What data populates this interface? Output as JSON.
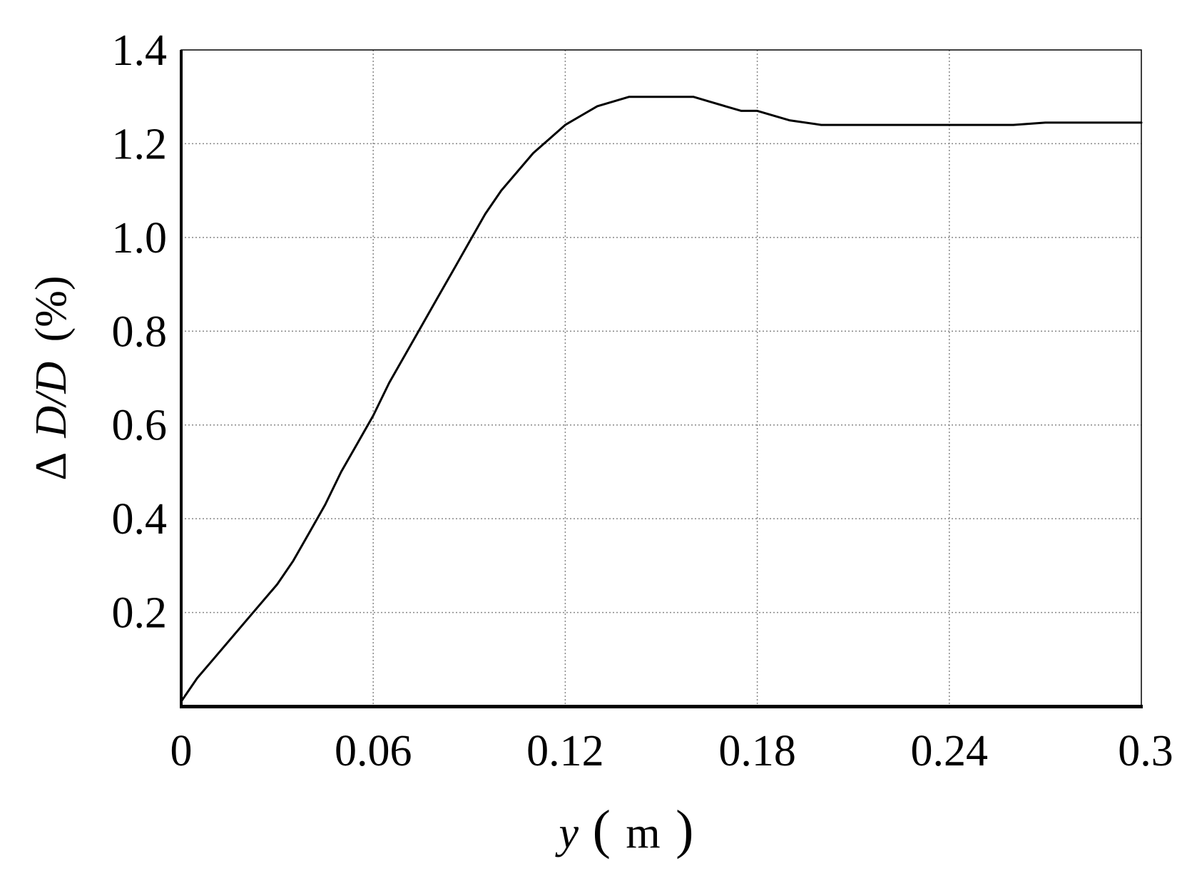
{
  "chart_data": {
    "type": "line",
    "title": "",
    "xlabel": {
      "var": "y",
      "unit": "m"
    },
    "ylabel": {
      "prefix": "Δ",
      "var": "D/D",
      "unit": "(%)"
    },
    "xlim": [
      0,
      0.3
    ],
    "ylim": [
      0,
      1.4
    ],
    "x_ticks": [
      "0",
      "0.06",
      "0.12",
      "0.18",
      "0.24",
      "0.3"
    ],
    "x_tick_values": [
      0,
      0.06,
      0.12,
      0.18,
      0.24,
      0.3
    ],
    "y_ticks": [
      "0.2",
      "0.4",
      "0.6",
      "0.8",
      "1.0",
      "1.2",
      "1.4"
    ],
    "y_tick_values": [
      0.2,
      0.4,
      0.6,
      0.8,
      1.0,
      1.2,
      1.4
    ],
    "grid": true,
    "line_color": "#000000",
    "series": [
      {
        "x": [
          0,
          0.005,
          0.01,
          0.02,
          0.03,
          0.035,
          0.04,
          0.045,
          0.05,
          0.055,
          0.06,
          0.065,
          0.07,
          0.075,
          0.08,
          0.085,
          0.09,
          0.095,
          0.1,
          0.105,
          0.11,
          0.115,
          0.12,
          0.125,
          0.13,
          0.135,
          0.14,
          0.145,
          0.15,
          0.155,
          0.16,
          0.165,
          0.17,
          0.175,
          0.18,
          0.19,
          0.2,
          0.21,
          0.22,
          0.23,
          0.24,
          0.25,
          0.26,
          0.27,
          0.28,
          0.29,
          0.3
        ],
        "y": [
          0.01,
          0.06,
          0.1,
          0.18,
          0.26,
          0.31,
          0.37,
          0.43,
          0.5,
          0.56,
          0.62,
          0.69,
          0.75,
          0.81,
          0.87,
          0.93,
          0.99,
          1.05,
          1.1,
          1.14,
          1.18,
          1.21,
          1.24,
          1.26,
          1.28,
          1.29,
          1.3,
          1.3,
          1.3,
          1.3,
          1.3,
          1.29,
          1.28,
          1.27,
          1.27,
          1.25,
          1.24,
          1.24,
          1.24,
          1.24,
          1.24,
          1.24,
          1.24,
          1.245,
          1.245,
          1.245,
          1.245
        ]
      }
    ]
  }
}
